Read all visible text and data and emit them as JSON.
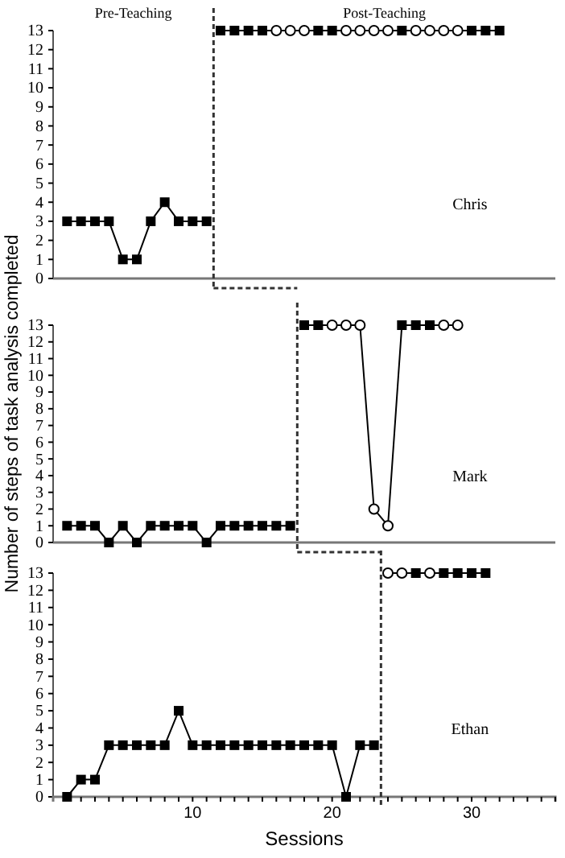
{
  "chart_data": [
    {
      "type": "line",
      "title": "Chris",
      "annotations": [
        "Pre-Teaching",
        "Post-Teaching"
      ],
      "xlim": [
        0,
        36
      ],
      "ylim": [
        0,
        13
      ],
      "yticks": [
        0,
        1,
        2,
        3,
        4,
        5,
        6,
        7,
        8,
        9,
        10,
        11,
        12,
        13
      ],
      "tick_labels": "y",
      "ylabel": "Number of steps of task analysis completed",
      "grid": false,
      "line_style": "solid",
      "ref_lines": [
        {
          "axis": "x",
          "value": 11.5,
          "line_style": "dashed",
          "color": "#333333"
        }
      ],
      "series": [
        {
          "type": "line",
          "marker": "square",
          "color": "#000000",
          "x": [
            1,
            2,
            3,
            4,
            5,
            6,
            7,
            8,
            9,
            10,
            11
          ],
          "values": [
            3,
            3,
            3,
            3,
            1,
            1,
            3,
            4,
            3,
            3,
            3
          ]
        },
        {
          "type": "line",
          "marker": "none",
          "color": "#000000",
          "x": [
            12,
            13,
            14,
            15,
            16,
            17,
            18,
            19,
            20,
            21,
            22,
            23,
            24,
            25,
            26,
            27,
            28,
            29,
            30,
            31,
            32
          ],
          "values": [
            13,
            13,
            13,
            13,
            13,
            13,
            13,
            13,
            13,
            13,
            13,
            13,
            13,
            13,
            13,
            13,
            13,
            13,
            13,
            13,
            13
          ]
        },
        {
          "type": "scatter",
          "marker": "square",
          "color": "#000000",
          "x": [
            12,
            13,
            14,
            15,
            19,
            20,
            25,
            30,
            31,
            32
          ],
          "values": [
            13,
            13,
            13,
            13,
            13,
            13,
            13,
            13,
            13,
            13
          ]
        },
        {
          "type": "scatter",
          "marker": "circle",
          "color": "#000000",
          "x": [
            16,
            17,
            18,
            21,
            22,
            23,
            24,
            26,
            27,
            28,
            29
          ],
          "values": [
            13,
            13,
            13,
            13,
            13,
            13,
            13,
            13,
            13,
            13,
            13
          ]
        }
      ]
    },
    {
      "type": "line",
      "title": "Mark",
      "xlim": [
        0,
        36
      ],
      "ylim": [
        0,
        13
      ],
      "yticks": [
        0,
        1,
        2,
        3,
        4,
        5,
        6,
        7,
        8,
        9,
        10,
        11,
        12,
        13
      ],
      "tick_labels": "y",
      "grid": false,
      "line_style": "solid",
      "ref_lines": [
        {
          "axis": "x",
          "value": 17.5,
          "line_style": "dashed",
          "color": "#333333"
        }
      ],
      "series": [
        {
          "type": "line",
          "marker": "square",
          "color": "#000000",
          "x": [
            1,
            2,
            3,
            4,
            5,
            6,
            7,
            8,
            9,
            10,
            11,
            12,
            13,
            14,
            15,
            16,
            17
          ],
          "values": [
            1,
            1,
            1,
            0,
            1,
            0,
            1,
            1,
            1,
            1,
            0,
            1,
            1,
            1,
            1,
            1,
            1
          ]
        },
        {
          "type": "line",
          "marker": "none",
          "color": "#000000",
          "x": [
            18,
            19,
            20,
            21,
            22,
            23,
            24,
            25,
            26,
            27,
            28,
            29
          ],
          "values": [
            13,
            13,
            13,
            13,
            13,
            2,
            1,
            13,
            13,
            13,
            13,
            13
          ]
        },
        {
          "type": "scatter",
          "marker": "square",
          "color": "#000000",
          "x": [
            18,
            19,
            25,
            26,
            27
          ],
          "values": [
            13,
            13,
            13,
            13,
            13
          ]
        },
        {
          "type": "scatter",
          "marker": "circle",
          "color": "#000000",
          "x": [
            20,
            21,
            22,
            23,
            24,
            28,
            29
          ],
          "values": [
            13,
            13,
            13,
            2,
            1,
            13,
            13
          ]
        }
      ]
    },
    {
      "type": "line",
      "title": "Ethan",
      "xlabel": "Sessions",
      "xlim": [
        0,
        36
      ],
      "xticks": [
        {
          "value": 1,
          "label": null
        },
        {
          "value": 2,
          "label": null
        },
        {
          "value": 3,
          "label": null
        },
        {
          "value": 4,
          "label": null
        },
        {
          "value": 5,
          "label": null
        },
        {
          "value": 6,
          "label": null
        },
        {
          "value": 7,
          "label": null
        },
        {
          "value": 8,
          "label": null
        },
        {
          "value": 9,
          "label": null
        },
        10,
        {
          "value": 11,
          "label": null
        },
        {
          "value": 12,
          "label": null
        },
        {
          "value": 13,
          "label": null
        },
        {
          "value": 14,
          "label": null
        },
        {
          "value": 15,
          "label": null
        },
        {
          "value": 16,
          "label": null
        },
        {
          "value": 17,
          "label": null
        },
        {
          "value": 18,
          "label": null
        },
        {
          "value": 19,
          "label": null
        },
        20,
        {
          "value": 21,
          "label": null
        },
        {
          "value": 22,
          "label": null
        },
        {
          "value": 23,
          "label": null
        },
        {
          "value": 24,
          "label": null
        },
        {
          "value": 25,
          "label": null
        },
        {
          "value": 26,
          "label": null
        },
        {
          "value": 27,
          "label": null
        },
        {
          "value": 28,
          "label": null
        },
        {
          "value": 29,
          "label": null
        },
        30,
        {
          "value": 31,
          "label": null
        },
        {
          "value": 32,
          "label": null
        },
        {
          "value": 33,
          "label": null
        },
        {
          "value": 34,
          "label": null
        },
        {
          "value": 35,
          "label": null
        },
        {
          "value": 36,
          "label": null
        }
      ],
      "ylim": [
        0,
        13
      ],
      "yticks": [
        0,
        1,
        2,
        3,
        4,
        5,
        6,
        7,
        8,
        9,
        10,
        11,
        12,
        13
      ],
      "grid": false,
      "line_style": "solid",
      "ref_lines": [
        {
          "axis": "x",
          "value": 23.5,
          "line_style": "dashed",
          "color": "#333333"
        }
      ],
      "series": [
        {
          "type": "line",
          "marker": "square",
          "color": "#000000",
          "x": [
            1,
            2,
            3,
            4,
            5,
            6,
            7,
            8,
            9,
            10,
            11,
            12,
            13,
            14,
            15,
            16,
            17,
            18,
            19,
            20,
            21,
            22,
            23
          ],
          "values": [
            0,
            1,
            1,
            3,
            3,
            3,
            3,
            3,
            5,
            3,
            3,
            3,
            3,
            3,
            3,
            3,
            3,
            3,
            3,
            3,
            0,
            3,
            3
          ]
        },
        {
          "type": "line",
          "marker": "none",
          "color": "#000000",
          "x": [
            24,
            25,
            26,
            27,
            28,
            29,
            30,
            31
          ],
          "values": [
            13,
            13,
            13,
            13,
            13,
            13,
            13,
            13
          ]
        },
        {
          "type": "scatter",
          "marker": "square",
          "color": "#000000",
          "x": [
            26,
            28,
            29,
            30,
            31
          ],
          "values": [
            13,
            13,
            13,
            13,
            13
          ]
        },
        {
          "type": "scatter",
          "marker": "circle",
          "color": "#000000",
          "x": [
            24,
            25,
            27
          ],
          "values": [
            13,
            13,
            13
          ]
        }
      ]
    }
  ]
}
